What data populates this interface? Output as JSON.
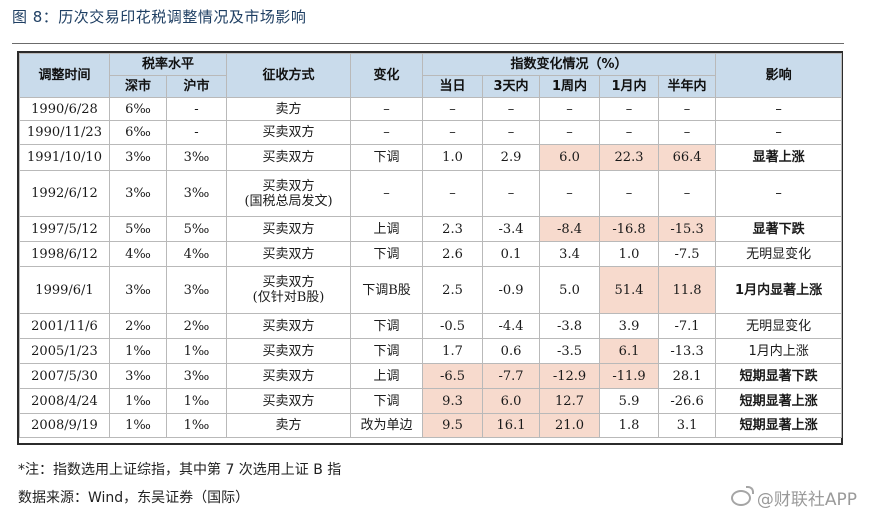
{
  "title": "图 8：历次交易印花税调整情况及市场影响",
  "table": {
    "header": {
      "date": "调整时间",
      "rate_group": "税率水平",
      "rate_sz": "深市",
      "rate_sh": "沪市",
      "method": "征收方式",
      "change": "变化",
      "index_group": "指数变化情况（%）",
      "d1": "当日",
      "d3": "3天内",
      "w1": "1周内",
      "m1": "1月内",
      "m6": "半年内",
      "impact": "影响"
    },
    "rows": [
      {
        "date": "1990/6/28",
        "sz": "6‰",
        "sh": "-",
        "method": "卖方",
        "method2": "",
        "change": "–",
        "d1": "–",
        "d3": "–",
        "w1": "–",
        "m1": "–",
        "m6": "–",
        "impact": "–"
      },
      {
        "date": "1990/11/23",
        "sz": "6‰",
        "sh": "-",
        "method": "买卖双方",
        "method2": "",
        "change": "–",
        "d1": "–",
        "d3": "–",
        "w1": "–",
        "m1": "–",
        "m6": "–",
        "impact": "–"
      },
      {
        "date": "1991/10/10",
        "sz": "3‰",
        "sh": "3‰",
        "method": "买卖双方",
        "method2": "",
        "change": "下调",
        "d1": "1.0",
        "d3": "2.9",
        "w1": "6.0",
        "m1": "22.3",
        "m6": "66.4",
        "impact": "显著上涨"
      },
      {
        "date": "1992/6/12",
        "sz": "3‰",
        "sh": "3‰",
        "method": "买卖双方",
        "method2": "(国税总局发文)",
        "change": "–",
        "d1": "–",
        "d3": "–",
        "w1": "–",
        "m1": "–",
        "m6": "–",
        "impact": "–"
      },
      {
        "date": "1997/5/12",
        "sz": "5‰",
        "sh": "5‰",
        "method": "买卖双方",
        "method2": "",
        "change": "上调",
        "d1": "2.3",
        "d3": "-3.4",
        "w1": "-8.4",
        "m1": "-16.8",
        "m6": "-15.3",
        "impact": "显著下跌"
      },
      {
        "date": "1998/6/12",
        "sz": "4‰",
        "sh": "4‰",
        "method": "买卖双方",
        "method2": "",
        "change": "下调",
        "d1": "2.6",
        "d3": "0.1",
        "w1": "3.4",
        "m1": "1.0",
        "m6": "-7.5",
        "impact": "无明显变化"
      },
      {
        "date": "1999/6/1",
        "sz": "3‰",
        "sh": "3‰",
        "method": "买卖双方",
        "method2": "(仅针对B股)",
        "change": "下调B股",
        "d1": "2.5",
        "d3": "-0.9",
        "w1": "5.0",
        "m1": "51.4",
        "m6": "11.8",
        "impact": "1月内显著上涨"
      },
      {
        "date": "2001/11/6",
        "sz": "2‰",
        "sh": "2‰",
        "method": "买卖双方",
        "method2": "",
        "change": "下调",
        "d1": "-0.5",
        "d3": "-4.4",
        "w1": "-3.8",
        "m1": "3.9",
        "m6": "-7.1",
        "impact": "无明显变化"
      },
      {
        "date": "2005/1/23",
        "sz": "1‰",
        "sh": "1‰",
        "method": "买卖双方",
        "method2": "",
        "change": "下调",
        "d1": "1.7",
        "d3": "0.6",
        "w1": "-3.5",
        "m1": "6.1",
        "m6": "-13.3",
        "impact": "1月内上涨"
      },
      {
        "date": "2007/5/30",
        "sz": "3‰",
        "sh": "3‰",
        "method": "买卖双方",
        "method2": "",
        "change": "上调",
        "d1": "-6.5",
        "d3": "-7.7",
        "w1": "-12.9",
        "m1": "-11.9",
        "m6": "28.1",
        "impact": "短期显著下跌"
      },
      {
        "date": "2008/4/24",
        "sz": "1‰",
        "sh": "1‰",
        "method": "买卖双方",
        "method2": "",
        "change": "下调",
        "d1": "9.3",
        "d3": "6.0",
        "w1": "12.7",
        "m1": "5.9",
        "m6": "-26.6",
        "impact": "短期显著上涨"
      },
      {
        "date": "2008/9/19",
        "sz": "1‰",
        "sh": "1‰",
        "method": "卖方",
        "method2": "",
        "change": "改为单边",
        "d1": "9.5",
        "d3": "16.1",
        "w1": "21.0",
        "m1": "1.8",
        "m6": "3.1",
        "impact": "短期显著上涨"
      }
    ]
  },
  "footnote": "*注：指数选用上证综指，其中第 7 次选用上证 B 指",
  "source": "数据来源：Wind，东吴证券（国际）",
  "watermark": "@财联社APP",
  "colors": {
    "header_bg": "#c9dbeb",
    "highlight": "#f7dacd",
    "title": "#1f3f63"
  }
}
